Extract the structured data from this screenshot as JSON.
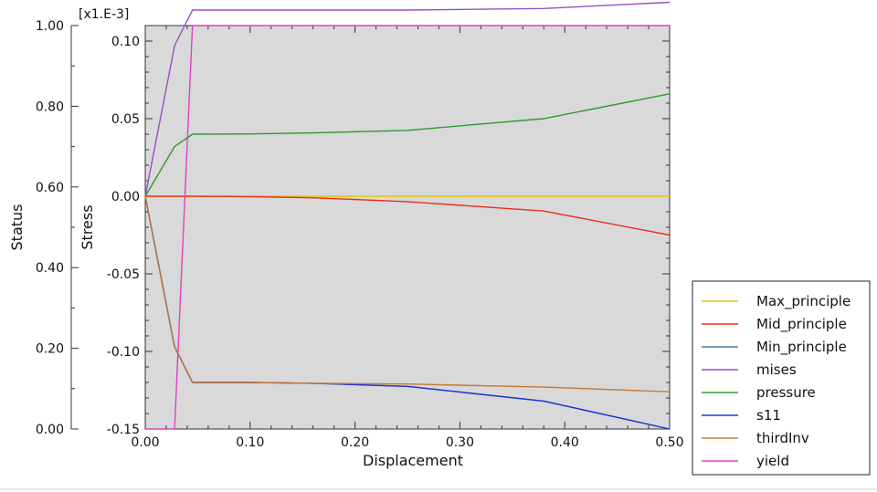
{
  "chart_data": {
    "type": "line",
    "xlabel": "Displacement",
    "ylabel_left": "Status",
    "ylabel_right": "Stress",
    "y_multiplier_label": "[x1.E-3]",
    "xlim": [
      0,
      0.5
    ],
    "ylim_left": [
      0,
      1
    ],
    "ylim_right": [
      -0.15,
      0.11
    ],
    "x_ticks": [
      "0.00",
      "0.10",
      "0.20",
      "0.30",
      "0.40",
      "0.50"
    ],
    "y_left_ticks": [
      "0.00",
      "0.20",
      "0.40",
      "0.60",
      "0.80",
      "1.00"
    ],
    "y_right_ticks": [
      "-0.15",
      "-0.10",
      "-0.05",
      "0.00",
      "0.05",
      "0.10"
    ],
    "x_tick_values": [
      0,
      0.1,
      0.2,
      0.3,
      0.4,
      0.5
    ],
    "y_left_tick_values": [
      0,
      0.2,
      0.4,
      0.6,
      0.8,
      1.0
    ],
    "y_right_tick_values": [
      -0.15,
      -0.1,
      -0.05,
      0,
      0.05,
      0.1
    ],
    "plot_background": "#d9d9d9",
    "grid": false,
    "legend_position": "bottom-right, outside plot",
    "series": [
      {
        "name": "Max_principle",
        "color": "#e6c700",
        "axis": "right",
        "x": [
          0,
          0.028,
          0.045,
          0.1,
          0.16,
          0.25,
          0.38,
          0.5
        ],
        "y": [
          0,
          0,
          0,
          0,
          0,
          0,
          0,
          0
        ]
      },
      {
        "name": "Mid_principle",
        "color": "#e8301a",
        "axis": "right",
        "x": [
          0,
          0.028,
          0.045,
          0.1,
          0.16,
          0.25,
          0.38,
          0.5
        ],
        "y": [
          0,
          0,
          0,
          -0.0003,
          -0.001,
          -0.0035,
          -0.0095,
          -0.025
        ]
      },
      {
        "name": "Min_principle",
        "color": "#4a7fa0",
        "axis": "right",
        "x": [
          0,
          0.028,
          0.045,
          0.1,
          0.16,
          0.25,
          0.38,
          0.5
        ],
        "y": [
          0,
          -0.097,
          -0.12,
          -0.12,
          -0.1205,
          -0.1225,
          -0.132,
          -0.15
        ]
      },
      {
        "name": "mises",
        "color": "#9a4fc8",
        "axis": "right",
        "x": [
          0,
          0.028,
          0.045,
          0.1,
          0.16,
          0.25,
          0.38,
          0.5
        ],
        "y": [
          0,
          0.097,
          0.12,
          0.12,
          0.12,
          0.12,
          0.121,
          0.125
        ]
      },
      {
        "name": "pressure",
        "color": "#2e9a2e",
        "axis": "right",
        "x": [
          0,
          0.028,
          0.045,
          0.1,
          0.16,
          0.25,
          0.38,
          0.5
        ],
        "y": [
          0,
          0.032,
          0.04,
          0.0402,
          0.0408,
          0.0425,
          0.05,
          0.066
        ]
      },
      {
        "name": "s11",
        "color": "#1f32d8",
        "axis": "right",
        "x": [
          0,
          0.028,
          0.045,
          0.1,
          0.16,
          0.25,
          0.38,
          0.5
        ],
        "y": [
          0,
          -0.097,
          -0.12,
          -0.12,
          -0.1205,
          -0.1225,
          -0.132,
          -0.15
        ]
      },
      {
        "name": "thirdInv",
        "color": "#c67838",
        "axis": "right",
        "x": [
          0,
          0.028,
          0.045,
          0.1,
          0.16,
          0.25,
          0.38,
          0.5
        ],
        "y": [
          0,
          -0.097,
          -0.12,
          -0.12,
          -0.1205,
          -0.121,
          -0.123,
          -0.126
        ]
      },
      {
        "name": "yield",
        "color": "#e040c8",
        "axis": "left",
        "x": [
          0,
          0.028,
          0.045,
          0.5
        ],
        "y": [
          0,
          0,
          1,
          1
        ]
      }
    ]
  }
}
